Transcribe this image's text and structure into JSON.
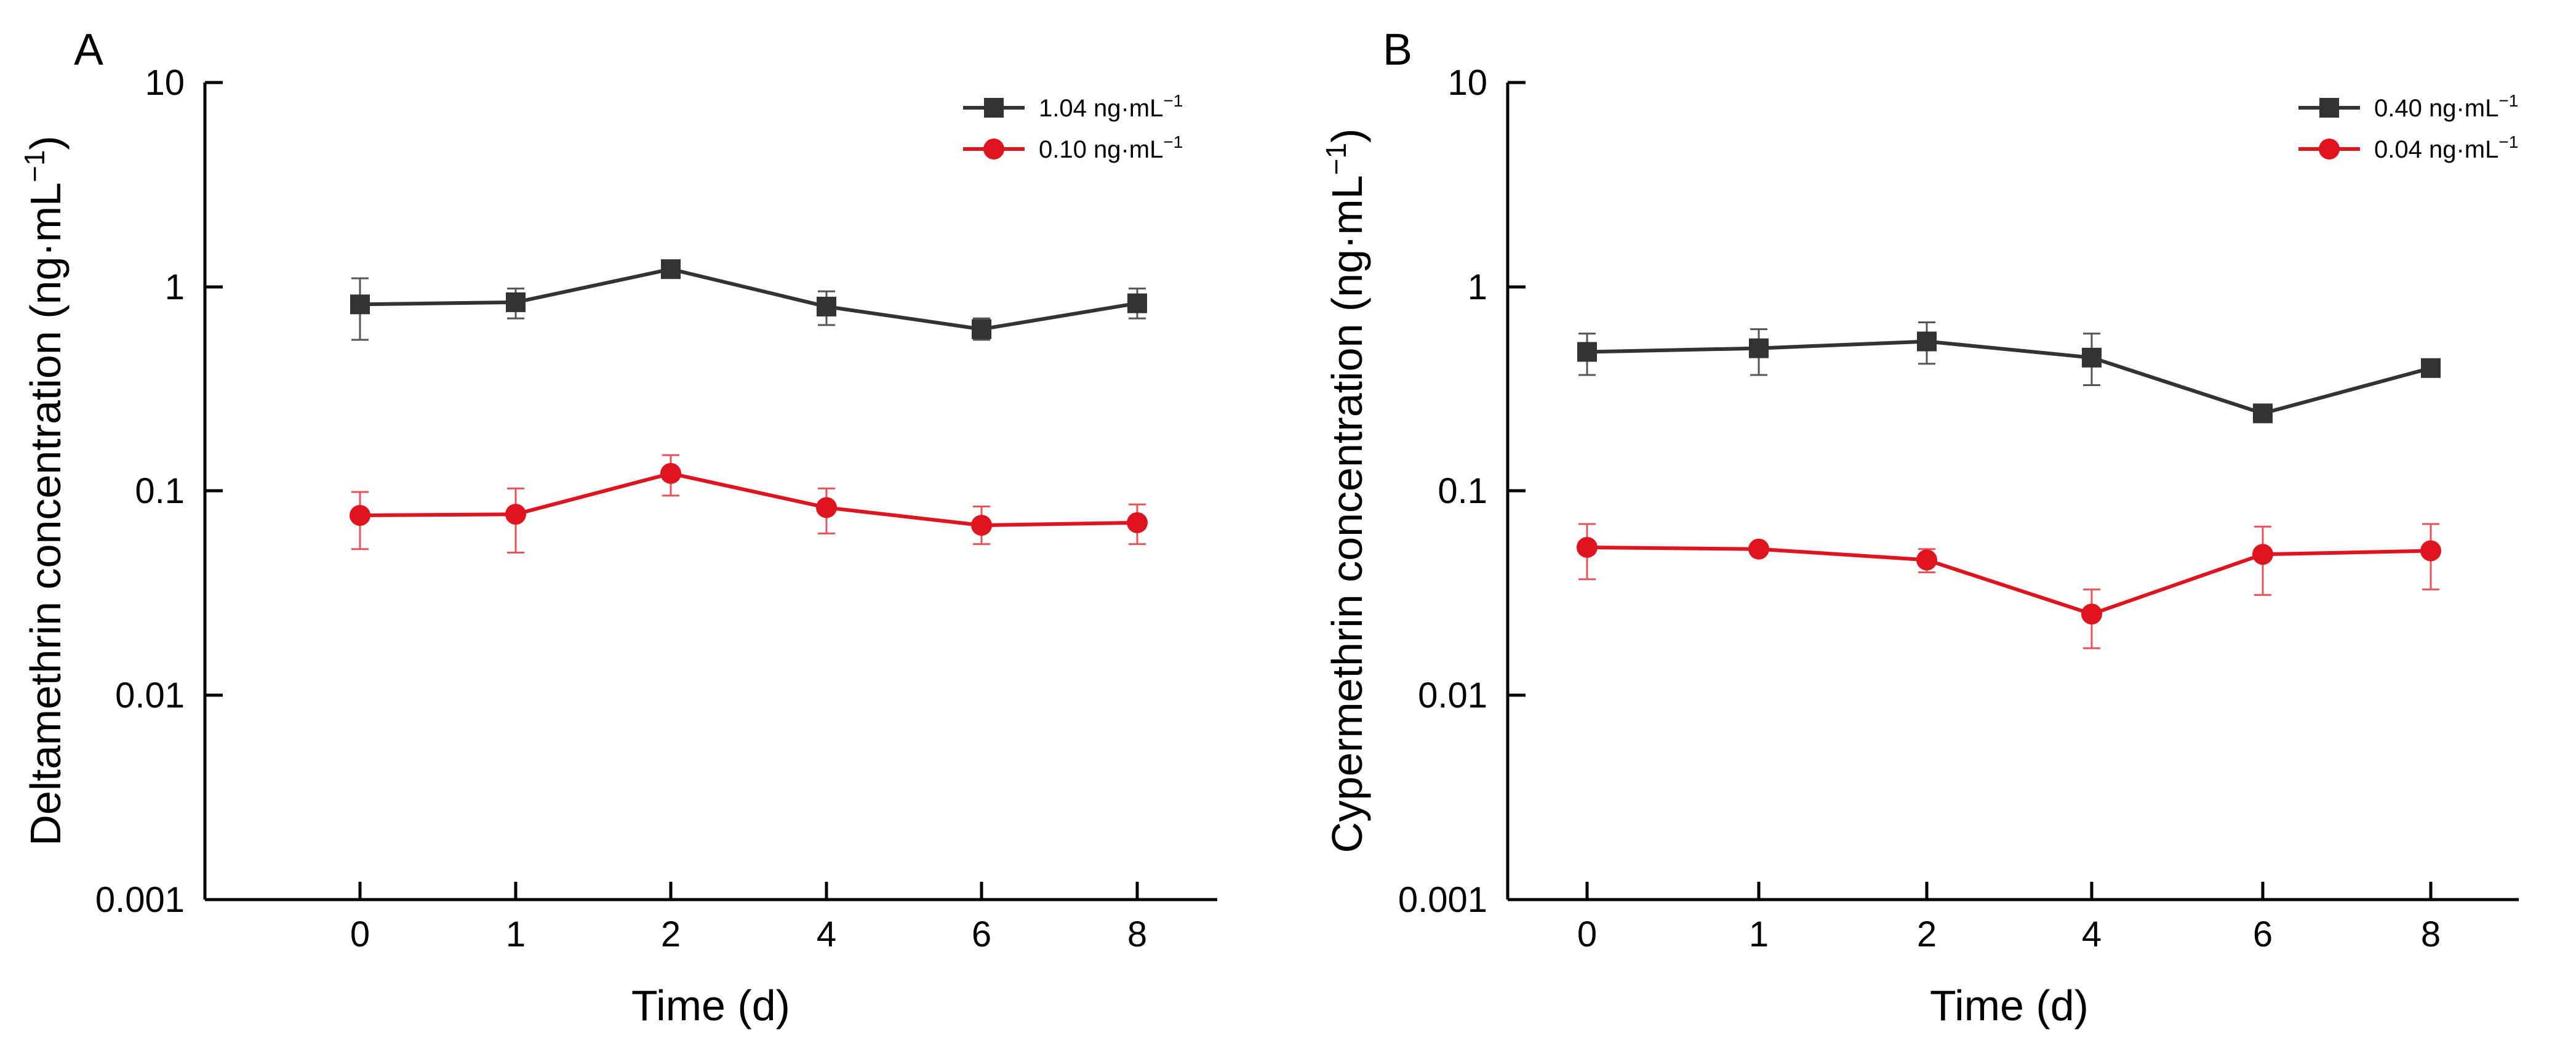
{
  "chart_data": [
    {
      "panel_label": "A",
      "type": "line",
      "yscale": "log",
      "ylim": [
        0.001,
        10
      ],
      "ytick_labels": [
        "0.001",
        "0.01",
        "0.1",
        "1",
        "10"
      ],
      "ytick_values": [
        0.001,
        0.01,
        0.1,
        1,
        10
      ],
      "categories": [
        "0",
        "1",
        "2",
        "4",
        "6",
        "8"
      ],
      "xlabel": "Time (d)",
      "ylabel": "Deltamethrin concentration (ng·mL",
      "ylabel_sup": "−1",
      "ylabel_close": ")",
      "legend_position": "top-right",
      "series": [
        {
          "name": "1.04 ng·mL",
          "name_sup": "−1",
          "color": "#333333",
          "marker": "square",
          "values": [
            0.82,
            0.84,
            1.22,
            0.8,
            0.62,
            0.83
          ],
          "err_low": [
            0.55,
            0.7,
            1.15,
            0.65,
            0.55,
            0.7
          ],
          "err_high": [
            1.1,
            0.98,
            1.28,
            0.95,
            0.7,
            0.98
          ]
        },
        {
          "name": "0.10 ng·mL",
          "name_sup": "−1",
          "color": "#e0141e",
          "marker": "circle",
          "values": [
            0.076,
            0.077,
            0.122,
            0.083,
            0.068,
            0.07
          ],
          "err_low": [
            0.052,
            0.05,
            0.095,
            0.062,
            0.055,
            0.055
          ],
          "err_high": [
            0.099,
            0.103,
            0.15,
            0.103,
            0.084,
            0.086
          ]
        }
      ]
    },
    {
      "panel_label": "B",
      "type": "line",
      "yscale": "log",
      "ylim": [
        0.001,
        10
      ],
      "ytick_labels": [
        "0.001",
        "0.01",
        "0.1",
        "1",
        "10"
      ],
      "ytick_values": [
        0.001,
        0.01,
        0.1,
        1,
        10
      ],
      "categories": [
        "0",
        "1",
        "2",
        "4",
        "6",
        "8"
      ],
      "xlabel": "Time (d)",
      "ylabel": "Cypermethrin concentration (ng·mL",
      "ylabel_sup": "−1",
      "ylabel_close": ")",
      "legend_position": "top-right",
      "series": [
        {
          "name": "0.40 ng·mL",
          "name_sup": "−1",
          "color": "#333333",
          "marker": "square",
          "values": [
            0.48,
            0.5,
            0.54,
            0.45,
            0.24,
            0.4
          ],
          "err_low": [
            0.37,
            0.37,
            0.42,
            0.33,
            0.22,
            0.38
          ],
          "err_high": [
            0.59,
            0.62,
            0.67,
            0.59,
            0.26,
            0.42
          ]
        },
        {
          "name": "0.04 ng·mL",
          "name_sup": "−1",
          "color": "#e0141e",
          "marker": "circle",
          "values": [
            0.053,
            0.052,
            0.046,
            0.025,
            0.049,
            0.051
          ],
          "err_low": [
            0.037,
            0.049,
            0.04,
            0.017,
            0.031,
            0.033
          ],
          "err_high": [
            0.069,
            0.055,
            0.052,
            0.033,
            0.067,
            0.069
          ]
        }
      ]
    }
  ]
}
